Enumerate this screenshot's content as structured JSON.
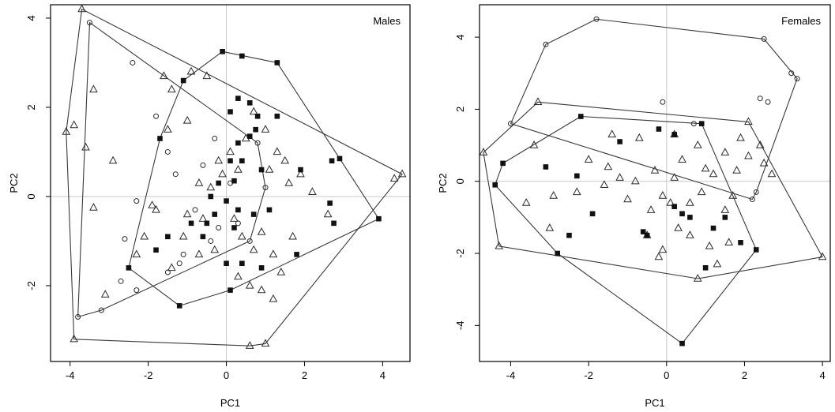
{
  "chart_data": [
    {
      "type": "scatter",
      "title": "Males",
      "xlabel": "PC1",
      "ylabel": "PC2",
      "xlim": [
        -4.5,
        4.7
      ],
      "ylim": [
        -3.7,
        4.3
      ],
      "xticks": [
        -4,
        -2,
        0,
        2,
        4
      ],
      "yticks": [
        -2,
        0,
        2,
        4
      ],
      "reference_lines": {
        "x": 0,
        "y": 0
      },
      "series": [
        {
          "marker": "open-triangle",
          "points": [
            [
              -3.7,
              4.2
            ],
            [
              -3.9,
              1.6
            ],
            [
              -4.1,
              1.45
            ],
            [
              -3.4,
              2.4
            ],
            [
              -3.6,
              1.1
            ],
            [
              -2.9,
              0.8
            ],
            [
              -3.4,
              -0.25
            ],
            [
              -3.1,
              -2.2
            ],
            [
              -3.9,
              -3.2
            ],
            [
              -2.3,
              -1.3
            ],
            [
              -2.1,
              -0.9
            ],
            [
              -1.6,
              2.7
            ],
            [
              -1.4,
              2.4
            ],
            [
              -1.5,
              1.5
            ],
            [
              -1.0,
              1.7
            ],
            [
              -0.9,
              2.8
            ],
            [
              -0.5,
              2.7
            ],
            [
              -1.9,
              -0.2
            ],
            [
              -1.8,
              -0.3
            ],
            [
              -1.4,
              -1.6
            ],
            [
              -1.0,
              -0.4
            ],
            [
              -0.6,
              -0.5
            ],
            [
              -0.4,
              0.2
            ],
            [
              -0.2,
              0.8
            ],
            [
              0.1,
              1.0
            ],
            [
              0.3,
              0.6
            ],
            [
              0.5,
              1.3
            ],
            [
              0.7,
              1.9
            ],
            [
              1.0,
              1.5
            ],
            [
              1.3,
              1.0
            ],
            [
              1.5,
              0.8
            ],
            [
              1.6,
              0.3
            ],
            [
              1.9,
              0.5
            ],
            [
              2.2,
              0.1
            ],
            [
              2.6,
              -0.4
            ],
            [
              0.2,
              -0.5
            ],
            [
              0.4,
              -0.9
            ],
            [
              0.7,
              -1.2
            ],
            [
              0.9,
              -0.8
            ],
            [
              1.2,
              -1.3
            ],
            [
              1.4,
              -1.7
            ],
            [
              -0.3,
              -1.2
            ],
            [
              -0.7,
              -1.3
            ],
            [
              -1.1,
              -0.9
            ],
            [
              0.6,
              -2.0
            ],
            [
              0.9,
              -2.1
            ],
            [
              1.2,
              -2.3
            ],
            [
              0.6,
              -3.35
            ],
            [
              1.0,
              -3.3
            ],
            [
              4.5,
              0.5
            ],
            [
              4.3,
              0.4
            ],
            [
              -0.1,
              0.5
            ],
            [
              -0.7,
              0.3
            ],
            [
              1.1,
              0.6
            ],
            [
              1.7,
              -0.9
            ],
            [
              0.3,
              -1.8
            ]
          ]
        },
        {
          "marker": "open-circle",
          "points": [
            [
              -3.5,
              3.9
            ],
            [
              -2.4,
              3.0
            ],
            [
              -2.3,
              -0.1
            ],
            [
              -2.6,
              -0.95
            ],
            [
              -2.7,
              -1.9
            ],
            [
              -2.3,
              -2.1
            ],
            [
              -3.2,
              -2.55
            ],
            [
              -3.8,
              -2.7
            ],
            [
              -1.8,
              1.8
            ],
            [
              -1.5,
              1.0
            ],
            [
              -1.2,
              -1.5
            ],
            [
              -1.5,
              -1.7
            ],
            [
              -1.1,
              -1.3
            ],
            [
              -0.8,
              -0.3
            ],
            [
              -0.6,
              0.7
            ],
            [
              -0.3,
              1.3
            ],
            [
              0.1,
              0.3
            ],
            [
              0.3,
              -0.6
            ],
            [
              0.6,
              -1.0
            ],
            [
              -0.2,
              -0.7
            ],
            [
              1.0,
              0.2
            ],
            [
              -0.4,
              -1.0
            ],
            [
              0.8,
              1.2
            ],
            [
              -1.3,
              0.5
            ]
          ]
        },
        {
          "marker": "filled-square",
          "points": [
            [
              -0.1,
              3.25
            ],
            [
              0.4,
              3.15
            ],
            [
              1.3,
              3.0
            ],
            [
              -1.1,
              2.6
            ],
            [
              0.3,
              2.2
            ],
            [
              0.1,
              1.9
            ],
            [
              0.6,
              2.1
            ],
            [
              0.8,
              1.8
            ],
            [
              1.3,
              1.8
            ],
            [
              0.75,
              1.5
            ],
            [
              0.6,
              1.35
            ],
            [
              0.3,
              1.2
            ],
            [
              0.9,
              0.6
            ],
            [
              -1.7,
              1.3
            ],
            [
              1.9,
              0.6
            ],
            [
              0.1,
              0.8
            ],
            [
              0.4,
              0.8
            ],
            [
              0.2,
              0.35
            ],
            [
              -0.2,
              0.3
            ],
            [
              -0.4,
              0.0
            ],
            [
              0.0,
              -0.1
            ],
            [
              0.3,
              -0.3
            ],
            [
              -0.3,
              -0.4
            ],
            [
              0.7,
              -0.4
            ],
            [
              1.1,
              -0.3
            ],
            [
              0.2,
              -0.7
            ],
            [
              -0.6,
              -0.9
            ],
            [
              -1.5,
              -0.9
            ],
            [
              -1.8,
              -1.2
            ],
            [
              -2.5,
              -1.6
            ],
            [
              -1.2,
              -2.45
            ],
            [
              0.0,
              -1.5
            ],
            [
              0.4,
              -1.5
            ],
            [
              0.9,
              -1.6
            ],
            [
              0.1,
              -2.1
            ],
            [
              1.8,
              -1.3
            ],
            [
              2.7,
              0.8
            ],
            [
              2.9,
              0.85
            ],
            [
              2.65,
              -0.15
            ],
            [
              2.75,
              -0.6
            ],
            [
              3.9,
              -0.5
            ],
            [
              -0.5,
              -0.6
            ],
            [
              -0.9,
              -0.6
            ]
          ]
        }
      ]
    },
    {
      "type": "scatter",
      "title": "Females",
      "xlabel": "PC1",
      "ylabel": "PC2",
      "xlim": [
        -4.8,
        4.2
      ],
      "ylim": [
        -5.0,
        4.9
      ],
      "xticks": [
        -4,
        -2,
        0,
        2,
        4
      ],
      "yticks": [
        -4,
        -2,
        0,
        2,
        4
      ],
      "reference_lines": {
        "x": 0,
        "y": 0
      },
      "series": [
        {
          "marker": "open-triangle",
          "points": [
            [
              -4.7,
              0.8
            ],
            [
              -3.3,
              2.2
            ],
            [
              -3.4,
              1.0
            ],
            [
              -3.6,
              -0.6
            ],
            [
              -4.3,
              -1.8
            ],
            [
              -3.0,
              -1.3
            ],
            [
              -2.9,
              -0.4
            ],
            [
              -2.3,
              -0.3
            ],
            [
              -2.0,
              0.6
            ],
            [
              -1.6,
              -0.1
            ],
            [
              -1.5,
              0.4
            ],
            [
              -1.2,
              0.1
            ],
            [
              -1.0,
              -0.5
            ],
            [
              -0.8,
              0.0
            ],
            [
              -0.4,
              -0.8
            ],
            [
              -0.1,
              -0.4
            ],
            [
              0.2,
              0.1
            ],
            [
              0.4,
              0.6
            ],
            [
              0.6,
              -0.6
            ],
            [
              0.9,
              -0.3
            ],
            [
              1.2,
              0.2
            ],
            [
              1.5,
              -0.8
            ],
            [
              1.7,
              -0.4
            ],
            [
              -0.5,
              -1.5
            ],
            [
              -0.1,
              -1.9
            ],
            [
              0.3,
              -1.3
            ],
            [
              0.6,
              -1.5
            ],
            [
              1.1,
              -1.8
            ],
            [
              1.3,
              -2.3
            ],
            [
              1.6,
              -1.7
            ],
            [
              0.8,
              -2.7
            ],
            [
              4.0,
              -2.1
            ],
            [
              2.1,
              1.65
            ],
            [
              2.4,
              1.0
            ],
            [
              2.5,
              0.5
            ],
            [
              2.7,
              0.2
            ],
            [
              2.1,
              0.7
            ],
            [
              1.8,
              0.3
            ],
            [
              -1.4,
              1.3
            ],
            [
              -0.7,
              1.2
            ],
            [
              0.2,
              1.3
            ],
            [
              0.8,
              1.0
            ],
            [
              1.5,
              0.8
            ],
            [
              1.9,
              1.2
            ],
            [
              -0.3,
              0.3
            ],
            [
              0.1,
              -0.6
            ],
            [
              -0.2,
              -2.1
            ],
            [
              1.0,
              0.35
            ]
          ]
        },
        {
          "marker": "open-circle",
          "points": [
            [
              -1.8,
              4.5
            ],
            [
              2.5,
              3.95
            ],
            [
              3.2,
              3.0
            ],
            [
              3.35,
              2.85
            ],
            [
              -3.1,
              3.8
            ],
            [
              -4.0,
              1.6
            ],
            [
              -0.1,
              2.2
            ],
            [
              0.7,
              1.6
            ],
            [
              2.4,
              2.3
            ],
            [
              2.6,
              2.2
            ],
            [
              2.3,
              -0.3
            ],
            [
              2.2,
              -0.5
            ]
          ]
        },
        {
          "marker": "filled-square",
          "points": [
            [
              -4.2,
              0.5
            ],
            [
              -4.4,
              -0.1
            ],
            [
              -3.1,
              0.4
            ],
            [
              -2.2,
              1.8
            ],
            [
              -2.3,
              0.15
            ],
            [
              -1.9,
              -0.9
            ],
            [
              -2.5,
              -1.5
            ],
            [
              -2.8,
              -2.0
            ],
            [
              -1.2,
              1.1
            ],
            [
              -0.2,
              1.45
            ],
            [
              0.2,
              1.3
            ],
            [
              0.9,
              1.6
            ],
            [
              0.4,
              -0.9
            ],
            [
              0.6,
              -1.0
            ],
            [
              -0.6,
              -1.4
            ],
            [
              -0.5,
              -1.5
            ],
            [
              1.2,
              -1.3
            ],
            [
              1.5,
              -1.0
            ],
            [
              1.9,
              -1.7
            ],
            [
              2.3,
              -1.9
            ],
            [
              1.0,
              -2.4
            ],
            [
              0.4,
              -4.5
            ],
            [
              0.2,
              -0.7
            ]
          ]
        }
      ]
    }
  ]
}
